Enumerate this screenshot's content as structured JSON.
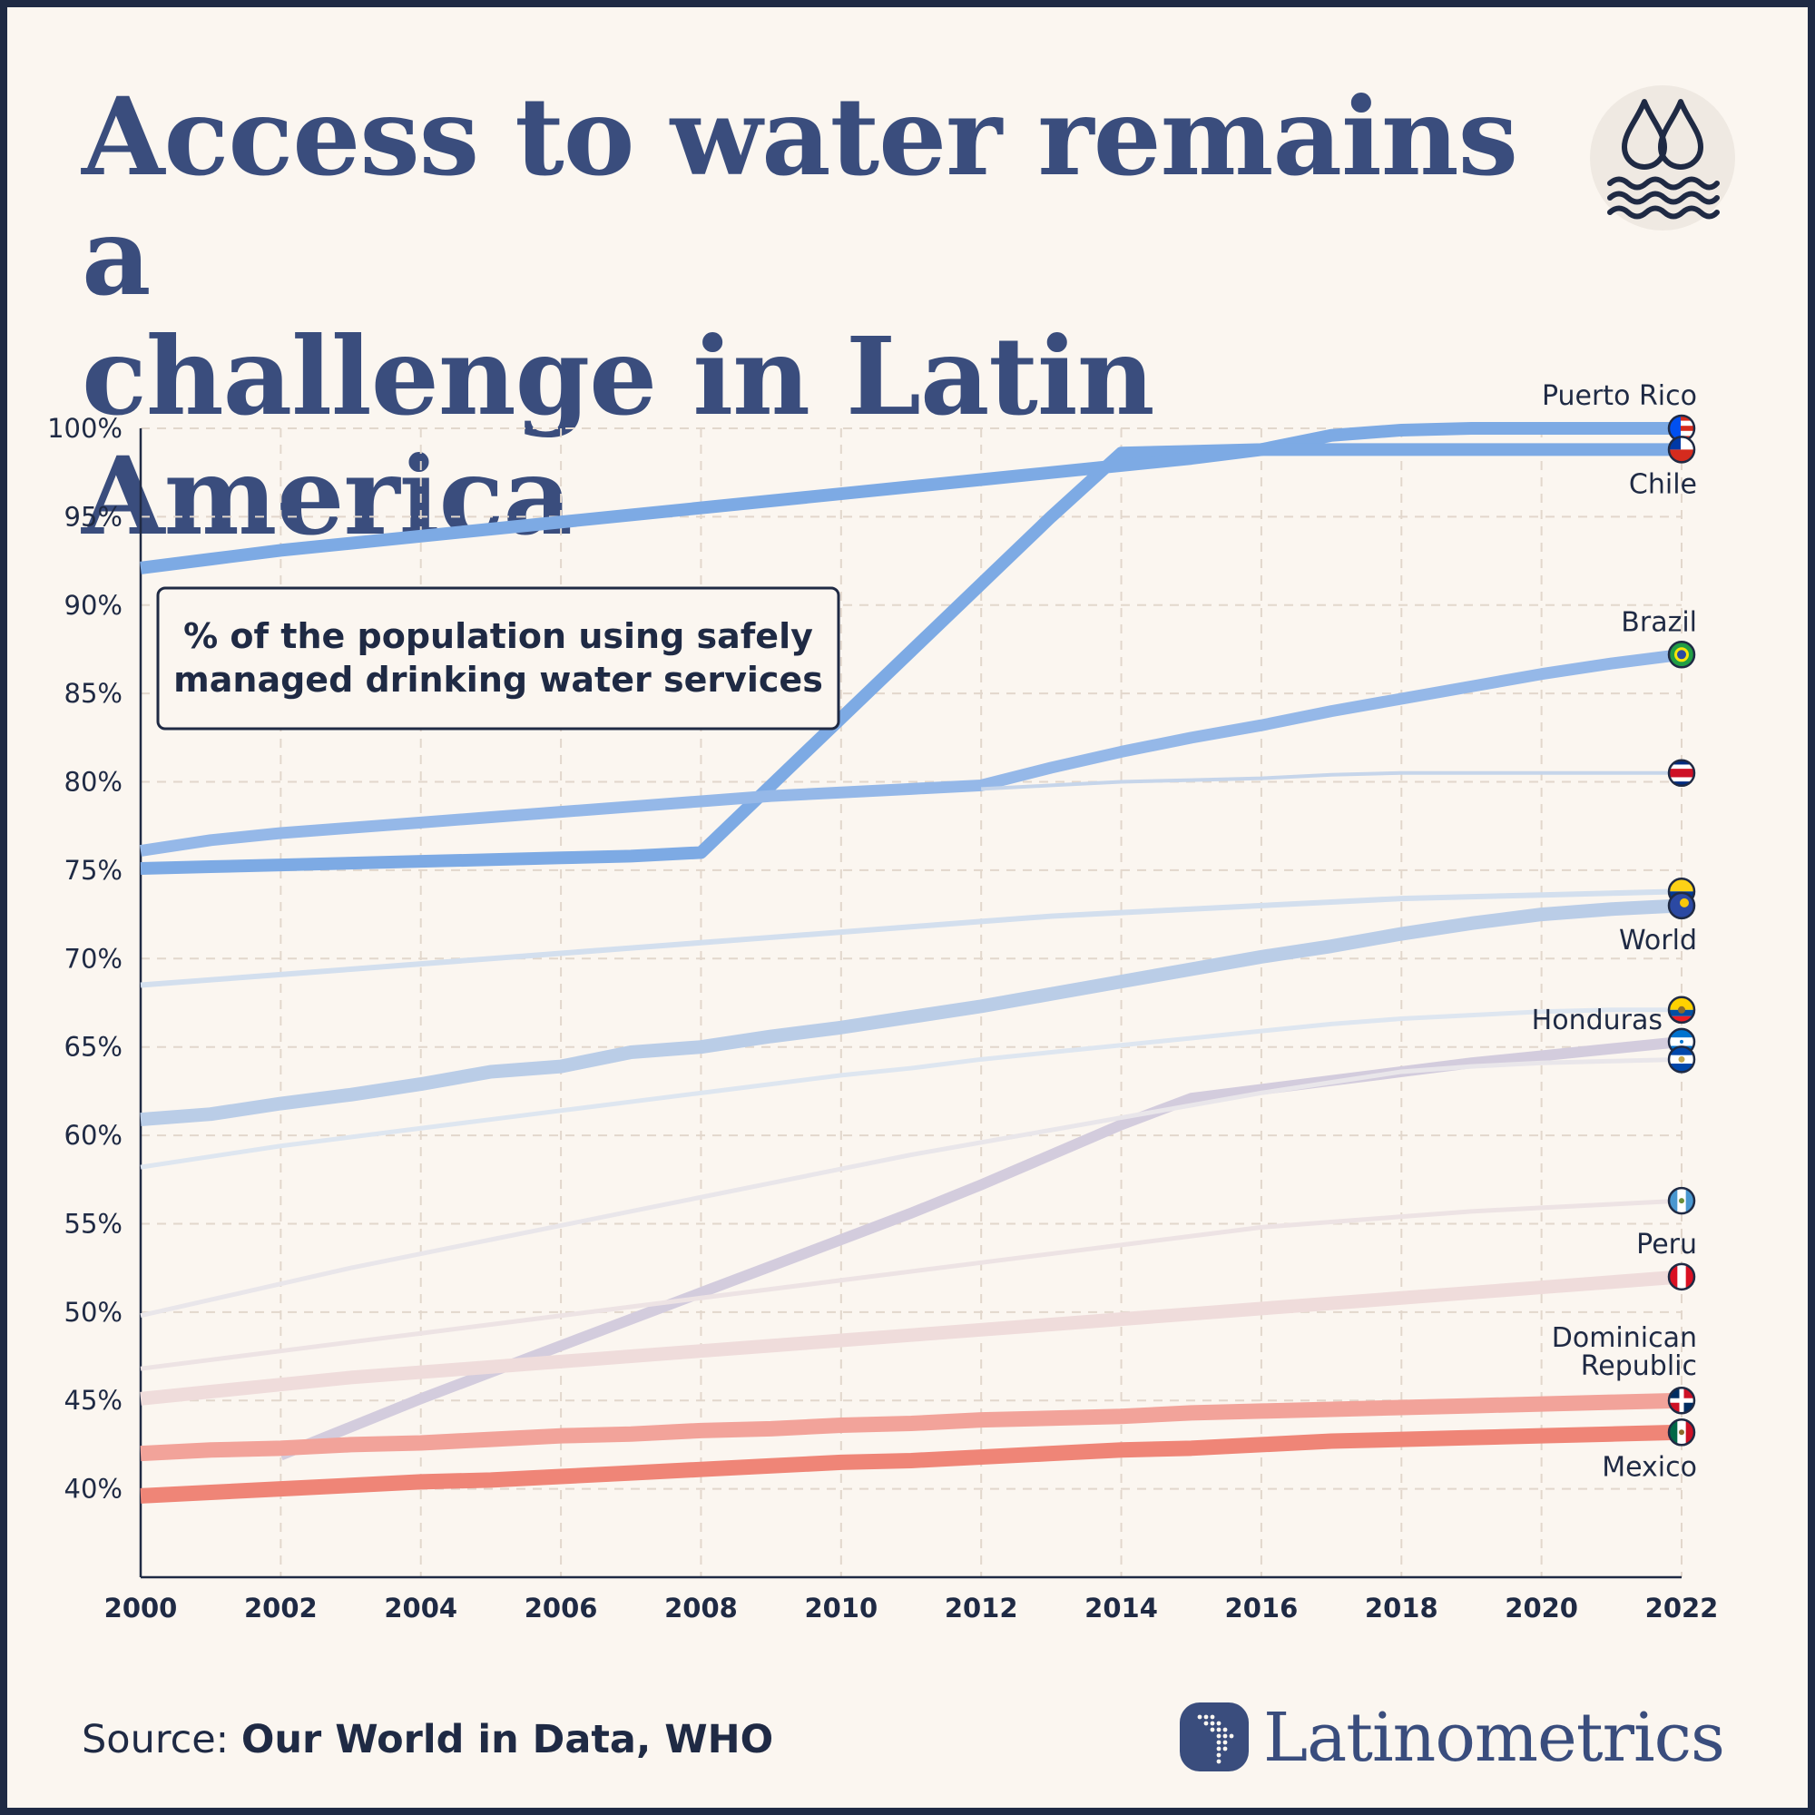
{
  "title": {
    "line1": "Access to water remains a",
    "line2": "challenge in Latin America"
  },
  "icon": "water-drops-waves-icon",
  "source": {
    "label": "Source:",
    "text": "Our World in Data, WHO"
  },
  "brand": {
    "name": "Latinometrics",
    "logo": "latin-america-map-icon"
  },
  "chart_data": {
    "type": "line",
    "subtitle_box": [
      "% of the population using safely",
      "managed drinking water services"
    ],
    "x": [
      2000,
      2001,
      2002,
      2003,
      2004,
      2005,
      2006,
      2007,
      2008,
      2009,
      2010,
      2011,
      2012,
      2013,
      2014,
      2015,
      2016,
      2017,
      2018,
      2019,
      2020,
      2021,
      2022
    ],
    "xticks": [
      2000,
      2002,
      2004,
      2006,
      2008,
      2010,
      2012,
      2014,
      2016,
      2018,
      2020,
      2022
    ],
    "yticks": [
      40,
      45,
      50,
      55,
      60,
      65,
      70,
      75,
      80,
      85,
      90,
      95,
      100
    ],
    "ytick_suffix": "%",
    "ylim": [
      35,
      100
    ],
    "xlim": [
      2000,
      2022
    ],
    "grid": true,
    "series": [
      {
        "name": "Puerto Rico",
        "label_pos": "above",
        "flag": "puerto-rico",
        "color": "#7daae4",
        "width": 14,
        "values": [
          75.1,
          75.2,
          75.3,
          75.4,
          75.5,
          75.6,
          75.7,
          75.8,
          76.0,
          79.8,
          83.6,
          87.4,
          91.2,
          95.0,
          98.6,
          98.7,
          98.8,
          99.6,
          99.9,
          100.0,
          100.0,
          100.0,
          100.0
        ]
      },
      {
        "name": "Chile",
        "label_pos": "below",
        "flag": "chile",
        "color": "#7daae4",
        "width": 14,
        "values": [
          92.1,
          92.6,
          93.1,
          93.5,
          93.9,
          94.3,
          94.7,
          95.1,
          95.5,
          95.9,
          96.3,
          96.7,
          97.1,
          97.5,
          97.9,
          98.3,
          98.8,
          98.8,
          98.8,
          98.8,
          98.8,
          98.8,
          98.8
        ]
      },
      {
        "name": "Brazil",
        "label_pos": "above",
        "flag": "brazil",
        "color": "#95b8e8",
        "width": 13,
        "values": [
          76.1,
          76.7,
          77.1,
          77.4,
          77.7,
          78.0,
          78.3,
          78.6,
          78.9,
          79.2,
          79.4,
          79.6,
          79.8,
          80.8,
          81.7,
          82.5,
          83.2,
          84.0,
          84.7,
          85.4,
          86.1,
          86.7,
          87.2
        ]
      },
      {
        "name": "",
        "flag": "costa-rica",
        "color": "#c6d5ea",
        "width": 4,
        "values": [
          null,
          null,
          null,
          null,
          null,
          null,
          null,
          null,
          null,
          null,
          null,
          null,
          79.6,
          79.8,
          80.0,
          80.1,
          80.2,
          80.4,
          80.5,
          80.5,
          80.5,
          80.5,
          80.5
        ]
      },
      {
        "name": "",
        "flag": "colombia",
        "color": "#d3dfee",
        "width": 6,
        "values": [
          68.5,
          68.8,
          69.1,
          69.4,
          69.7,
          70.0,
          70.3,
          70.6,
          70.9,
          71.2,
          71.5,
          71.8,
          72.1,
          72.4,
          72.6,
          72.8,
          73.0,
          73.2,
          73.4,
          73.5,
          73.6,
          73.7,
          73.8
        ]
      },
      {
        "name": "World",
        "label_pos": "below",
        "flag": "world-globe",
        "color": "#bacde7",
        "width": 15,
        "values": [
          60.9,
          61.2,
          61.8,
          62.3,
          62.9,
          63.6,
          63.9,
          64.7,
          65.0,
          65.6,
          66.1,
          66.7,
          67.3,
          68.0,
          68.7,
          69.4,
          70.1,
          70.7,
          71.4,
          72.0,
          72.5,
          72.8,
          73.0
        ]
      },
      {
        "name": "",
        "flag": "ecuador",
        "color": "#dee6f0",
        "width": 5,
        "values": [
          58.2,
          58.8,
          59.4,
          59.9,
          60.4,
          60.9,
          61.4,
          61.9,
          62.4,
          62.9,
          63.4,
          63.8,
          64.3,
          64.7,
          65.1,
          65.5,
          65.9,
          66.3,
          66.6,
          66.8,
          67.0,
          67.1,
          67.1
        ]
      },
      {
        "name": "Honduras",
        "label_pos": "left",
        "flag": "honduras",
        "color": "#d3ccdd",
        "width": 12,
        "values": [
          null,
          null,
          41.9,
          43.5,
          45.1,
          46.6,
          48.1,
          49.6,
          51.1,
          52.6,
          54.1,
          55.6,
          57.2,
          58.9,
          60.6,
          62.1,
          62.6,
          63.1,
          63.6,
          64.1,
          64.5,
          64.9,
          65.3
        ]
      },
      {
        "name": "",
        "flag": "el-salvador",
        "color": "#e9e6ea",
        "width": 5,
        "values": [
          49.8,
          50.7,
          51.6,
          52.5,
          53.3,
          54.1,
          54.9,
          55.7,
          56.5,
          57.3,
          58.1,
          58.9,
          59.6,
          60.3,
          61.0,
          61.7,
          62.4,
          63.0,
          63.6,
          63.9,
          64.1,
          64.2,
          64.3
        ]
      },
      {
        "name": "",
        "flag": "guatemala",
        "color": "#ede3e4",
        "width": 5,
        "values": [
          46.8,
          47.3,
          47.8,
          48.3,
          48.8,
          49.3,
          49.8,
          50.3,
          50.8,
          51.3,
          51.8,
          52.3,
          52.8,
          53.3,
          53.8,
          54.3,
          54.8,
          55.1,
          55.4,
          55.7,
          55.9,
          56.1,
          56.3
        ]
      },
      {
        "name": "Peru",
        "label_pos": "above",
        "flag": "peru",
        "color": "#efdcdb",
        "width": 15,
        "values": [
          45.1,
          45.5,
          45.9,
          46.3,
          46.6,
          46.9,
          47.2,
          47.5,
          47.8,
          48.1,
          48.4,
          48.7,
          49.0,
          49.3,
          49.6,
          49.9,
          50.2,
          50.5,
          50.8,
          51.1,
          51.4,
          51.7,
          52.0
        ]
      },
      {
        "name": "Dominican Republic",
        "label_pos": "above2",
        "flag": "dominican-republic",
        "color": "#f2a39a",
        "width": 17,
        "values": [
          42.0,
          42.2,
          42.3,
          42.5,
          42.6,
          42.8,
          43.0,
          43.1,
          43.3,
          43.4,
          43.6,
          43.7,
          43.9,
          44.0,
          44.1,
          44.3,
          44.4,
          44.5,
          44.6,
          44.7,
          44.8,
          44.9,
          45.0
        ]
      },
      {
        "name": "Mexico",
        "label_pos": "below",
        "flag": "mexico",
        "color": "#ef8577",
        "width": 17,
        "values": [
          39.6,
          39.8,
          40.0,
          40.2,
          40.4,
          40.5,
          40.7,
          40.9,
          41.1,
          41.3,
          41.5,
          41.6,
          41.8,
          42.0,
          42.2,
          42.3,
          42.5,
          42.7,
          42.8,
          42.9,
          43.0,
          43.1,
          43.2
        ]
      }
    ]
  }
}
